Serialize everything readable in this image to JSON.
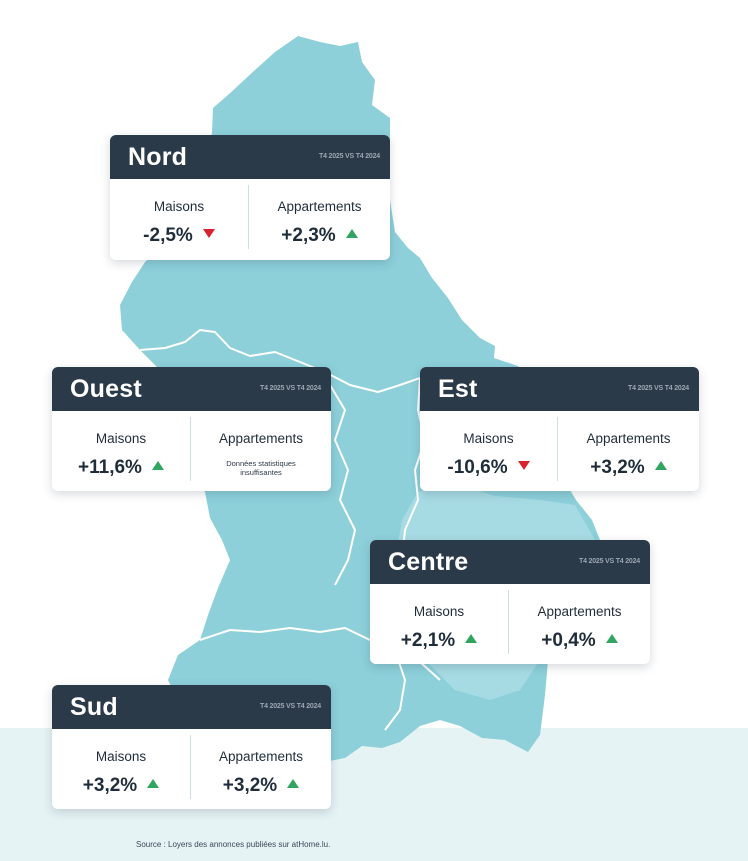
{
  "colors": {
    "map_fill": "#8dd0da",
    "map_fill_light": "#a7dbe3",
    "border_lines": "#ffffff",
    "card_header": "#2b3a48",
    "increase_arrow": "#2fa55f",
    "decrease_arrow": "#d8222d",
    "bottom_band": "#e6f3f5"
  },
  "map": {
    "regions": [
      "Nord",
      "Ouest",
      "Est",
      "Centre",
      "Sud"
    ]
  },
  "cards": {
    "nord": {
      "title": "Nord",
      "period": "T4 2025 VS T4 2024",
      "maisons_label": "Maisons",
      "maisons_value": "-2,5%",
      "maisons_trend": "down",
      "appartements_label": "Appartements",
      "appartements_value": "+2,3%",
      "appartements_trend": "up"
    },
    "ouest": {
      "title": "Ouest",
      "period": "T4 2025 VS T4 2024",
      "maisons_label": "Maisons",
      "maisons_value": "+11,6%",
      "maisons_trend": "up",
      "appartements_label": "Appartements",
      "appartements_note_line1": "Données statistiques",
      "appartements_note_line2": "insuffisantes"
    },
    "est": {
      "title": "Est",
      "period": "T4 2025 VS T4 2024",
      "maisons_label": "Maisons",
      "maisons_value": "-10,6%",
      "maisons_trend": "down",
      "appartements_label": "Appartements",
      "appartements_value": "+3,2%",
      "appartements_trend": "up"
    },
    "centre": {
      "title": "Centre",
      "period": "T4 2025 VS T4 2024",
      "maisons_label": "Maisons",
      "maisons_value": "+2,1%",
      "maisons_trend": "up",
      "appartements_label": "Appartements",
      "appartements_value": "+0,4%",
      "appartements_trend": "up"
    },
    "sud": {
      "title": "Sud",
      "period": "T4 2025 VS T4 2024",
      "maisons_label": "Maisons",
      "maisons_value": "+3,2%",
      "maisons_trend": "up",
      "appartements_label": "Appartements",
      "appartements_value": "+3,2%",
      "appartements_trend": "up"
    }
  },
  "footer": {
    "source": "Source : Loyers des annonces publiées sur atHome.lu."
  }
}
